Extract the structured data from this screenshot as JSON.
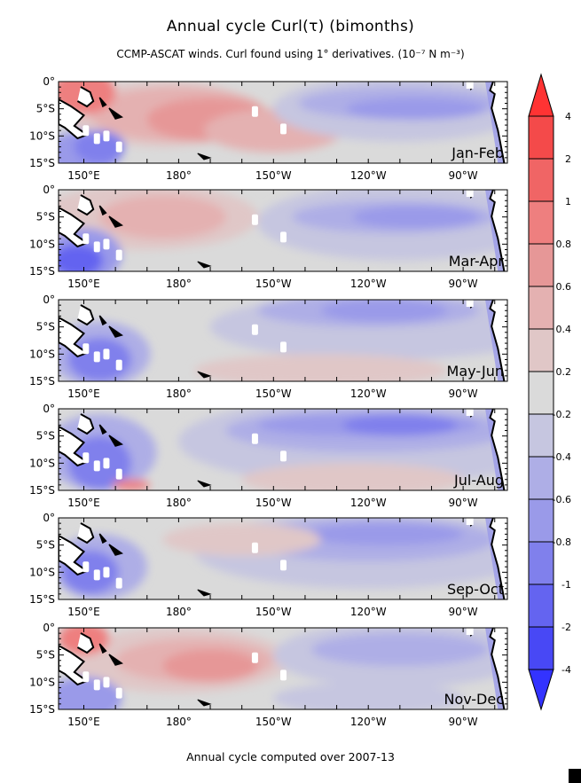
{
  "title": "Annual cycle Curl(τ)  (bimonths)",
  "subtitle": "CCMP-ASCAT winds. Curl found using 1° derivatives. (10⁻⁷ N m⁻³)",
  "footer": "Annual cycle computed over 2007-13",
  "chart_data": {
    "type": "heatmap",
    "title": "Annual cycle Curl(τ)  (bimonths)",
    "units": "10^-7 N m^-3",
    "panels": [
      "Jan-Feb",
      "Mar-Apr",
      "May-Jun",
      "Jul-Aug",
      "Sep-Oct",
      "Nov-Dec"
    ],
    "x_ticks": [
      "150°E",
      "180°",
      "150°W",
      "120°W",
      "90°W"
    ],
    "x_tick_values": [
      150,
      180,
      210,
      240,
      270
    ],
    "y_ticks": [
      "0°",
      "5°S",
      "10°S",
      "15°S"
    ],
    "y_tick_values": [
      0,
      -5,
      -10,
      -15
    ],
    "xlim": [
      142,
      284
    ],
    "ylim": [
      -15,
      0
    ],
    "colorbar": {
      "labels": [
        "4",
        "2",
        "1",
        "0.8",
        "0.6",
        "0.4",
        "0.2",
        "-0.2",
        "-0.4",
        "-0.6",
        "-0.8",
        "-1",
        "-2",
        "-4"
      ],
      "colors": [
        "#ff3333",
        "#f44a4a",
        "#f06565",
        "#ee7f7f",
        "#e69797",
        "#e4b1b1",
        "#e0c7c7",
        "#dadada",
        "#c6c6e0",
        "#aeaee6",
        "#9a9ae9",
        "#8080ec",
        "#6464f0",
        "#4848f5",
        "#3333ff"
      ]
    }
  }
}
